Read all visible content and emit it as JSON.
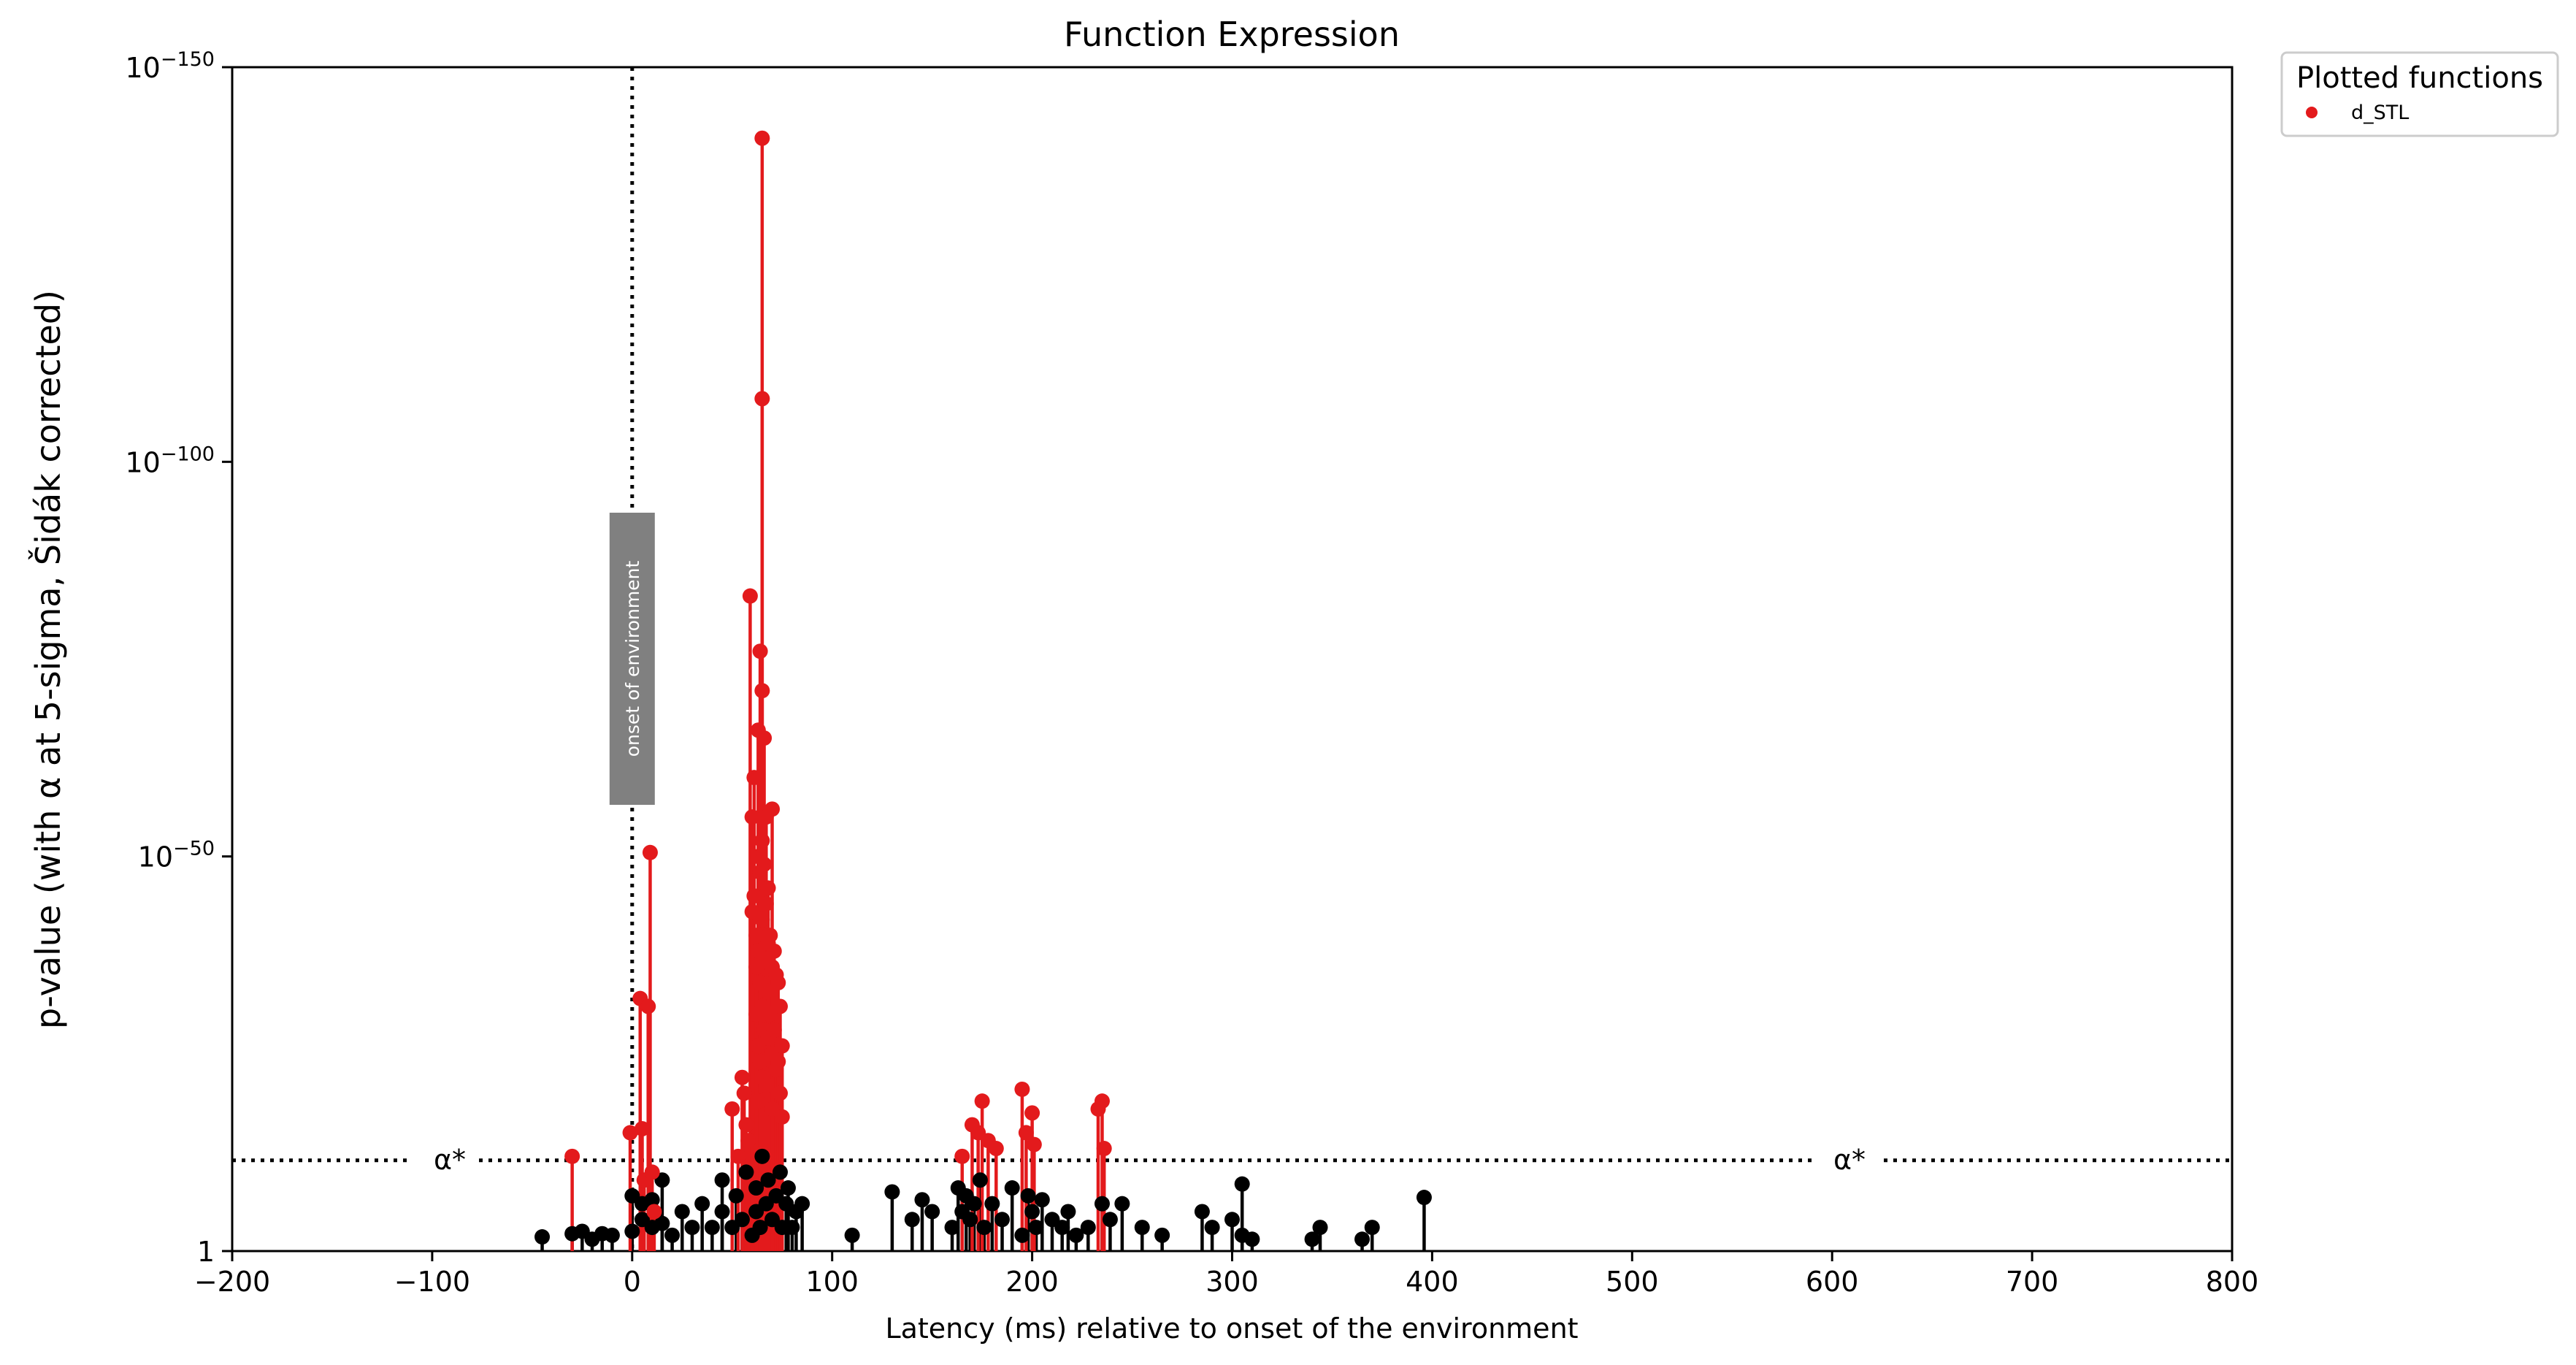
{
  "chart_data": {
    "type": "scatter",
    "title": "Function Expression",
    "xlabel": "Latency (ms) relative to onset of the environment",
    "ylabel": "p-value (with α at 5-sigma, Šidák corrected)",
    "xlim": [
      -200,
      800
    ],
    "ylim_neg_log10": [
      0,
      150
    ],
    "x_ticks": [
      "−200",
      "−100",
      "0",
      "100",
      "200",
      "300",
      "400",
      "500",
      "600",
      "700",
      "800"
    ],
    "y_ticks": [
      {
        "value": 0,
        "base": "1",
        "exp": ""
      },
      {
        "value": 50,
        "base": "10",
        "exp": "−50"
      },
      {
        "value": 100,
        "base": "10",
        "exp": "−100"
      },
      {
        "value": 150,
        "base": "10",
        "exp": "−150"
      }
    ],
    "legend": {
      "title": "Plotted functions",
      "placement": "outside-top-right"
    },
    "alpha_line": {
      "neg_log10": 11.5,
      "label": "α*"
    },
    "onset_line": {
      "x": 0,
      "label": "onset of environment"
    },
    "series": [
      {
        "name": "d_STL",
        "color": "#e31a1c",
        "points": [
          [
            -30,
            12
          ],
          [
            -1,
            15
          ],
          [
            4,
            32
          ],
          [
            5,
            15.5
          ],
          [
            6,
            9
          ],
          [
            8,
            31
          ],
          [
            9,
            50.5
          ],
          [
            10,
            10
          ],
          [
            11,
            5
          ],
          [
            50,
            18
          ],
          [
            53,
            12
          ],
          [
            55,
            22
          ],
          [
            56,
            20
          ],
          [
            57,
            16
          ],
          [
            58,
            14
          ],
          [
            59,
            83
          ],
          [
            60,
            55
          ],
          [
            60,
            43
          ],
          [
            61,
            60
          ],
          [
            61,
            45
          ],
          [
            62,
            40
          ],
          [
            62,
            36
          ],
          [
            62,
            30
          ],
          [
            63,
            66
          ],
          [
            63,
            50
          ],
          [
            63,
            38
          ],
          [
            63,
            26
          ],
          [
            63,
            19
          ],
          [
            64,
            76
          ],
          [
            64,
            48
          ],
          [
            64,
            34
          ],
          [
            64,
            24
          ],
          [
            65,
            141
          ],
          [
            65,
            108
          ],
          [
            65,
            71
          ],
          [
            65,
            52
          ],
          [
            65,
            42
          ],
          [
            65,
            31
          ],
          [
            65,
            22
          ],
          [
            66,
            65
          ],
          [
            66,
            49
          ],
          [
            66,
            37
          ],
          [
            66,
            28
          ],
          [
            67,
            55
          ],
          [
            67,
            44
          ],
          [
            67,
            33
          ],
          [
            67,
            21
          ],
          [
            68,
            46
          ],
          [
            68,
            39
          ],
          [
            68,
            27
          ],
          [
            69,
            40
          ],
          [
            69,
            30
          ],
          [
            70,
            56
          ],
          [
            70,
            36
          ],
          [
            70,
            25
          ],
          [
            70,
            18
          ],
          [
            71,
            38
          ],
          [
            71,
            28
          ],
          [
            72,
            35
          ],
          [
            72,
            23
          ],
          [
            73,
            34
          ],
          [
            73,
            24
          ],
          [
            74,
            31
          ],
          [
            74,
            20
          ],
          [
            75,
            26
          ],
          [
            75,
            17
          ],
          [
            165,
            12
          ],
          [
            170,
            16
          ],
          [
            173,
            15
          ],
          [
            175,
            19
          ],
          [
            178,
            14
          ],
          [
            182,
            13
          ],
          [
            195,
            20.5
          ],
          [
            197,
            15
          ],
          [
            200,
            17.5
          ],
          [
            201,
            13.5
          ],
          [
            233,
            18
          ],
          [
            235,
            19
          ],
          [
            236,
            13
          ]
        ]
      },
      {
        "name": "",
        "color": "#000000",
        "points": [
          [
            -45,
            1.8
          ],
          [
            -30,
            2.2
          ],
          [
            -25,
            2.5
          ],
          [
            -20,
            1.5
          ],
          [
            -15,
            2.2
          ],
          [
            -10,
            2
          ],
          [
            0,
            2.5
          ],
          [
            0,
            7
          ],
          [
            5,
            4
          ],
          [
            5,
            6
          ],
          [
            10,
            3
          ],
          [
            10,
            6.5
          ],
          [
            15,
            3.5
          ],
          [
            15,
            9
          ],
          [
            20,
            2
          ],
          [
            25,
            5
          ],
          [
            30,
            3
          ],
          [
            35,
            6
          ],
          [
            40,
            3
          ],
          [
            45,
            5
          ],
          [
            45,
            9
          ],
          [
            50,
            3
          ],
          [
            52,
            7
          ],
          [
            55,
            4
          ],
          [
            57,
            10
          ],
          [
            60,
            2
          ],
          [
            62,
            5
          ],
          [
            62,
            8
          ],
          [
            64,
            3
          ],
          [
            65,
            12
          ],
          [
            67,
            6
          ],
          [
            68,
            9
          ],
          [
            70,
            4
          ],
          [
            72,
            7
          ],
          [
            74,
            10
          ],
          [
            75,
            3
          ],
          [
            77,
            6
          ],
          [
            78,
            8
          ],
          [
            80,
            3
          ],
          [
            82,
            5
          ],
          [
            85,
            6
          ],
          [
            110,
            2
          ],
          [
            130,
            7.5
          ],
          [
            140,
            4
          ],
          [
            145,
            6.5
          ],
          [
            150,
            5
          ],
          [
            160,
            3
          ],
          [
            163,
            8
          ],
          [
            165,
            5
          ],
          [
            167,
            7
          ],
          [
            169,
            4
          ],
          [
            171,
            6
          ],
          [
            174,
            9
          ],
          [
            176,
            3
          ],
          [
            180,
            6
          ],
          [
            185,
            4
          ],
          [
            190,
            8
          ],
          [
            195,
            2
          ],
          [
            198,
            7
          ],
          [
            200,
            5
          ],
          [
            202,
            3
          ],
          [
            205,
            6.5
          ],
          [
            210,
            4
          ],
          [
            215,
            3
          ],
          [
            218,
            5
          ],
          [
            222,
            2
          ],
          [
            228,
            3
          ],
          [
            235,
            6
          ],
          [
            239,
            4
          ],
          [
            245,
            6
          ],
          [
            255,
            3
          ],
          [
            265,
            2
          ],
          [
            285,
            5
          ],
          [
            290,
            3
          ],
          [
            300,
            4
          ],
          [
            305,
            2
          ],
          [
            305,
            8.5
          ],
          [
            310,
            1.5
          ],
          [
            340,
            1.5
          ],
          [
            344,
            3
          ],
          [
            365,
            1.5
          ],
          [
            370,
            3
          ],
          [
            396,
            6.8
          ]
        ]
      }
    ]
  }
}
